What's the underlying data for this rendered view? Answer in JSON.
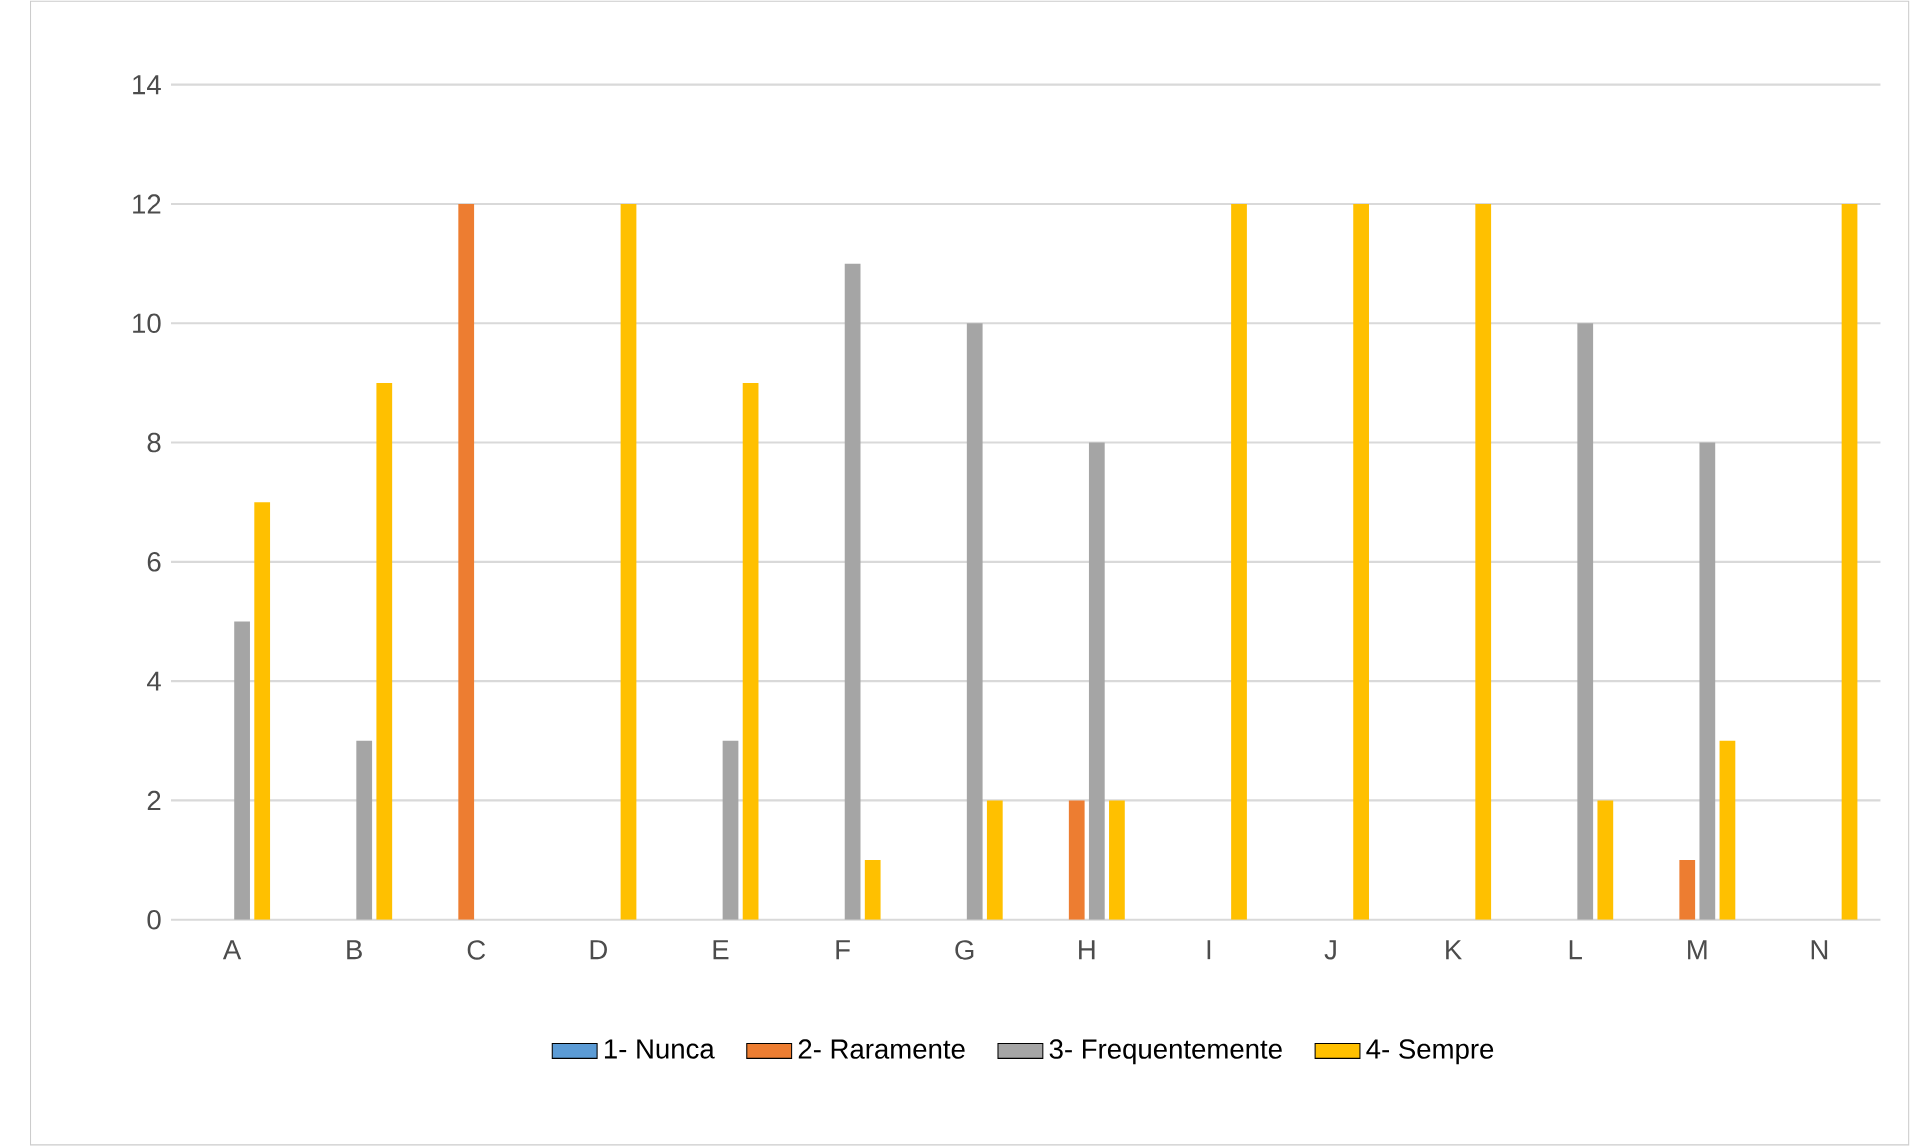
{
  "chart_data": {
    "type": "bar",
    "categories": [
      "A",
      "B",
      "C",
      "D",
      "E",
      "F",
      "G",
      "H",
      "I",
      "J",
      "K",
      "L",
      "M",
      "N"
    ],
    "series": [
      {
        "name": "1- Nunca",
        "color": "#5b9bd5",
        "values": [
          0,
          0,
          0,
          0,
          0,
          0,
          0,
          0,
          0,
          0,
          0,
          0,
          0,
          0
        ]
      },
      {
        "name": "2- Raramente",
        "color": "#ed7d31",
        "values": [
          0,
          0,
          12,
          0,
          0,
          0,
          0,
          2,
          0,
          0,
          0,
          0,
          1,
          0
        ]
      },
      {
        "name": "3- Frequentemente",
        "color": "#a5a5a5",
        "values": [
          5,
          3,
          0,
          0,
          3,
          11,
          10,
          8,
          0,
          0,
          0,
          10,
          8,
          0
        ]
      },
      {
        "name": "4- Sempre",
        "color": "#ffc000",
        "values": [
          7,
          9,
          0,
          12,
          9,
          1,
          2,
          2,
          12,
          12,
          12,
          2,
          3,
          12
        ]
      }
    ],
    "ylim": [
      0,
      14
    ],
    "yticks": [
      0,
      2,
      4,
      6,
      8,
      10,
      12,
      14
    ],
    "grid": "y",
    "legend": "bottom"
  }
}
